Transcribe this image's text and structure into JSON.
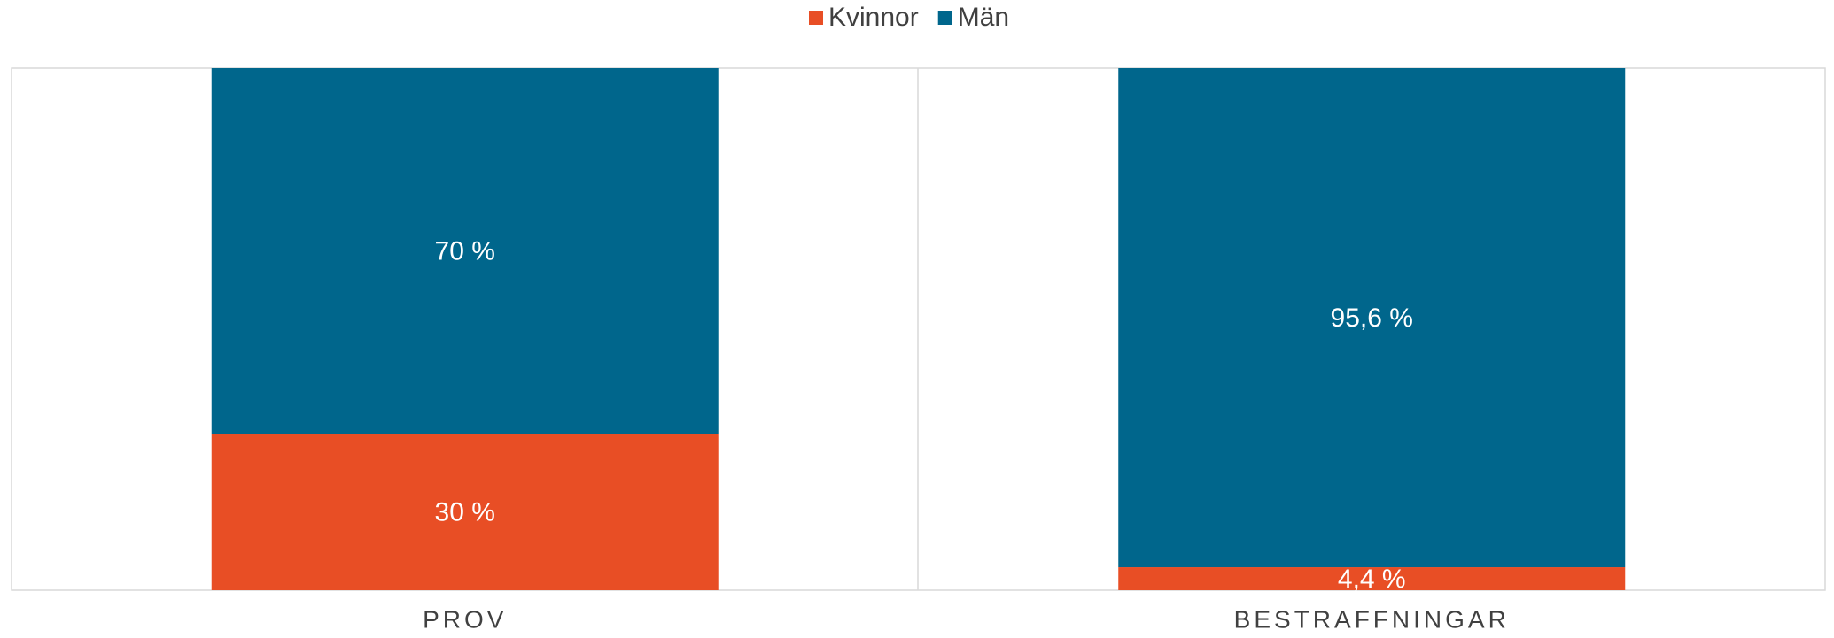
{
  "chart_data": {
    "type": "stacked_bar",
    "categories": [
      "PROV",
      "BESTRAFFNINGAR"
    ],
    "series": [
      {
        "name": "Kvinnor",
        "color": "#e84e25",
        "values": [
          30,
          4.4
        ],
        "value_labels": [
          "30 %",
          "4,4 %"
        ]
      },
      {
        "name": "Män",
        "color": "#00668c",
        "values": [
          70,
          95.6
        ],
        "value_labels": [
          "70 %",
          "95,6 %"
        ]
      }
    ],
    "ylim": [
      0,
      100
    ]
  }
}
